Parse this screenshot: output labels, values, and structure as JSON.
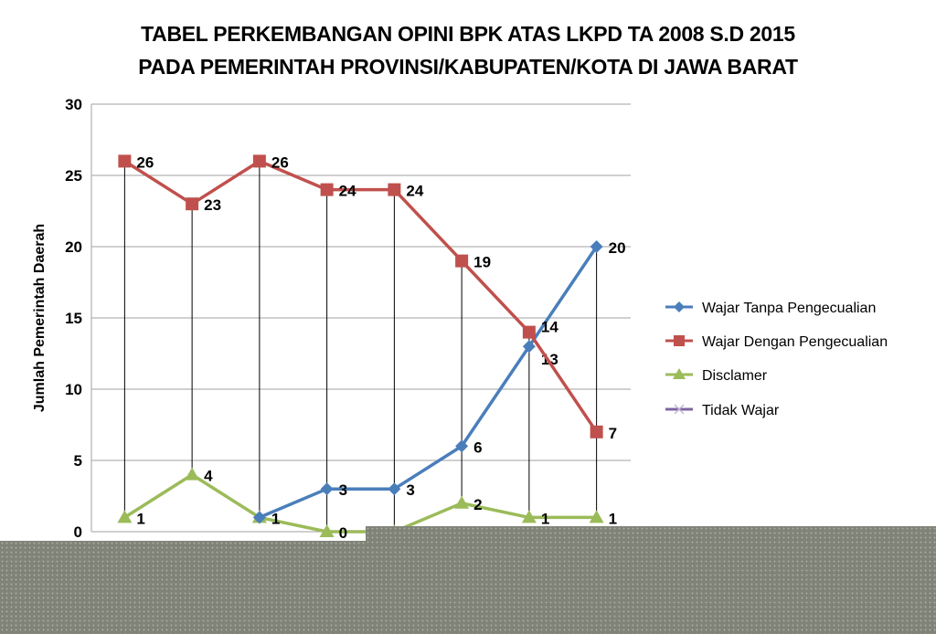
{
  "chart_data": {
    "type": "line",
    "title": "TABEL PERKEMBANGAN OPINI BPK ATAS LKPD TA 2008 S.D 2015",
    "subtitle": "PADA PEMERINTAH PROVINSI/KABUPATEN/KOTA DI JAWA BARAT",
    "ylabel": "Jumlah Pemerintah Daerah",
    "xlabel": "",
    "ylim": [
      0,
      30
    ],
    "yticks": [
      "0",
      "5",
      "10",
      "15",
      "20",
      "25",
      "30"
    ],
    "grid": true,
    "legend_position": "right",
    "high_low_lines": true,
    "series": [
      {
        "name": "Wajar Tanpa Pengecualian",
        "color": "#4a7ebb",
        "marker": "diamond",
        "values": [
          null,
          null,
          1,
          3,
          3,
          6,
          13,
          20
        ],
        "labels": [
          null,
          null,
          null,
          "3",
          "3",
          "6",
          "13",
          "20"
        ]
      },
      {
        "name": "Wajar Dengan Pengecualian",
        "color": "#c0504d",
        "marker": "square",
        "values": [
          26,
          23,
          26,
          24,
          24,
          19,
          14,
          7
        ],
        "labels": [
          "26",
          "23",
          "26",
          "24",
          "24",
          "19",
          "14",
          "7"
        ]
      },
      {
        "name": "Disclamer",
        "color": "#9bbb59",
        "marker": "triangle",
        "values": [
          1,
          4,
          1,
          0,
          0,
          2,
          1,
          1
        ],
        "labels": [
          "1",
          "4",
          "1",
          "0",
          null,
          "2",
          "1",
          "1"
        ]
      },
      {
        "name": "Tidak Wajar",
        "color": "#8064a2",
        "marker": "x",
        "values": []
      }
    ]
  }
}
